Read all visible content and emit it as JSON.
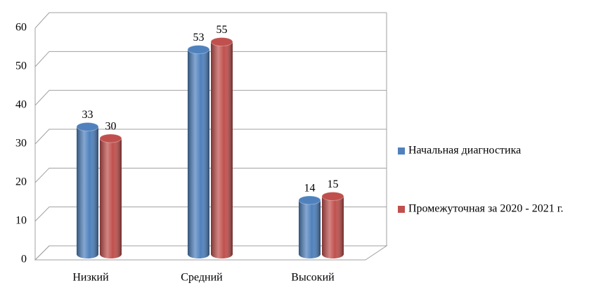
{
  "chart_data": {
    "type": "bar3d",
    "categories": [
      "Низкий",
      "Средний",
      "Высокий"
    ],
    "series": [
      {
        "name": "Начальная диагностика",
        "color": "#4f81bd",
        "values": [
          33,
          53,
          14
        ]
      },
      {
        "name": "Промежуточная за 2020 - 2021 г.",
        "color": "#c0504d",
        "values": [
          30,
          55,
          15
        ]
      }
    ],
    "ylim": [
      0,
      60
    ],
    "yticks": [
      0,
      10,
      20,
      30,
      40,
      50,
      60
    ],
    "grid": true,
    "legend": "right"
  }
}
